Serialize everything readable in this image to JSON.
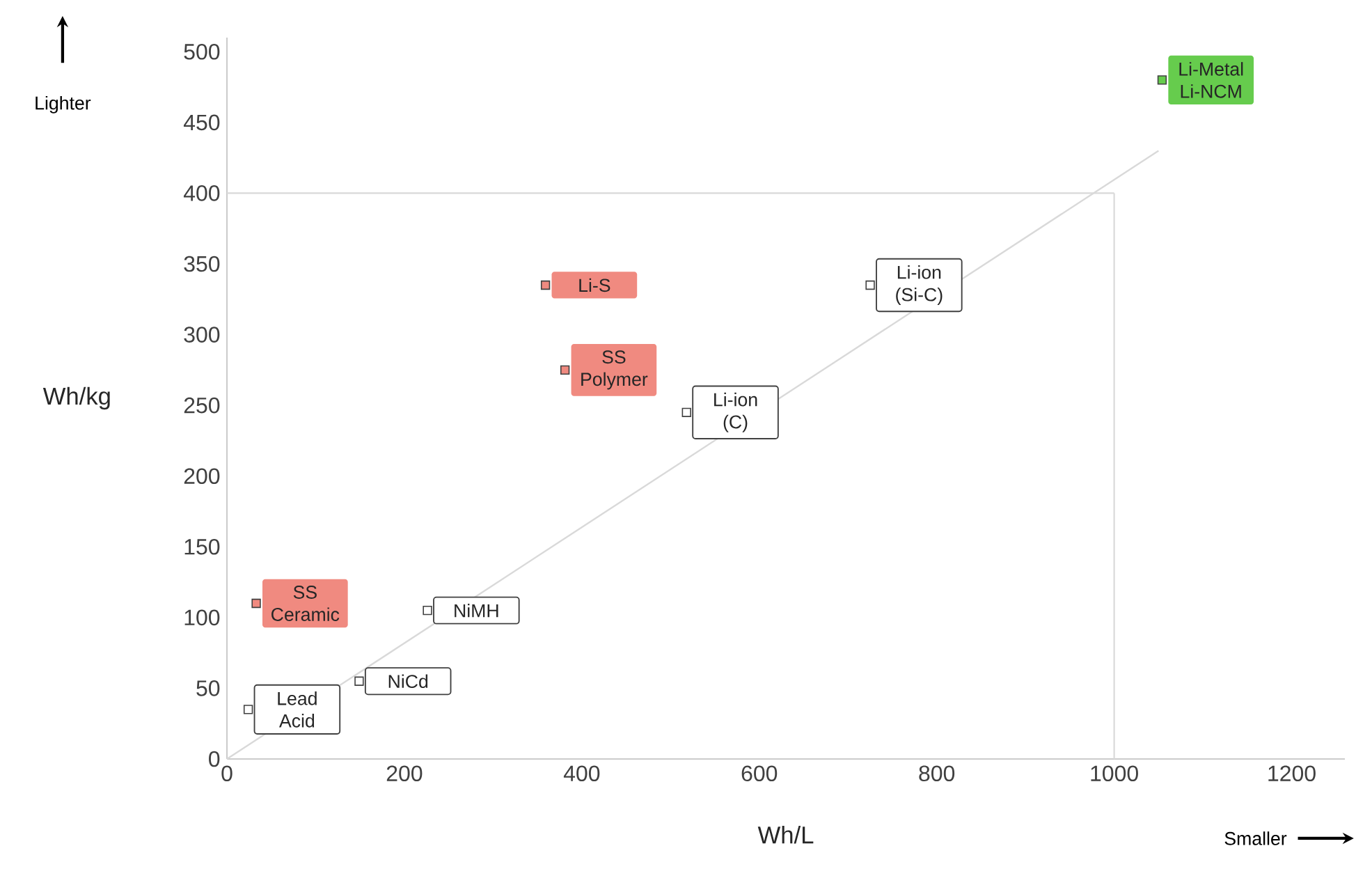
{
  "chart_data": {
    "type": "scatter",
    "xlabel": "Wh/L",
    "ylabel": "Wh/kg",
    "xlim": [
      0,
      1260
    ],
    "ylim": [
      0,
      510
    ],
    "xticks": [
      0,
      200,
      400,
      600,
      800,
      1000,
      1200
    ],
    "yticks": [
      0,
      50,
      100,
      150,
      200,
      250,
      300,
      350,
      400,
      450,
      500
    ],
    "series": [
      {
        "type": "line",
        "x": [
          0,
          1050
        ],
        "values": [
          0,
          430
        ],
        "color": "#d9d9d9"
      },
      {
        "x": [
          24,
          149,
          226,
          518,
          725
        ],
        "values": [
          35,
          55,
          105,
          245,
          335
        ],
        "color": "#ffffff",
        "marker": "square",
        "value_labels": [
          "Lead Acid",
          "NiCd",
          "NiMH",
          "Li-ion (C)",
          "Li-ion (Si-C)"
        ]
      },
      {
        "x": [
          33,
          359,
          381
        ],
        "values": [
          110,
          335,
          275
        ],
        "color": "#f08a80",
        "marker": "square",
        "value_labels": [
          "SS Ceramic",
          "Li-S",
          "SS Polymer"
        ]
      },
      {
        "x": [
          1054
        ],
        "values": [
          480
        ],
        "color": "#66cc4d",
        "marker": "square",
        "value_labels": [
          "Li-Metal Li-NCM"
        ]
      }
    ],
    "ref_lines": [
      {
        "axis": "y",
        "value": 400,
        "color": "#d9d9d9"
      },
      {
        "axis": "x",
        "value": 1000,
        "color": "#d9d9d9"
      }
    ],
    "annotations": [
      "Lighter",
      "Smaller"
    ]
  }
}
